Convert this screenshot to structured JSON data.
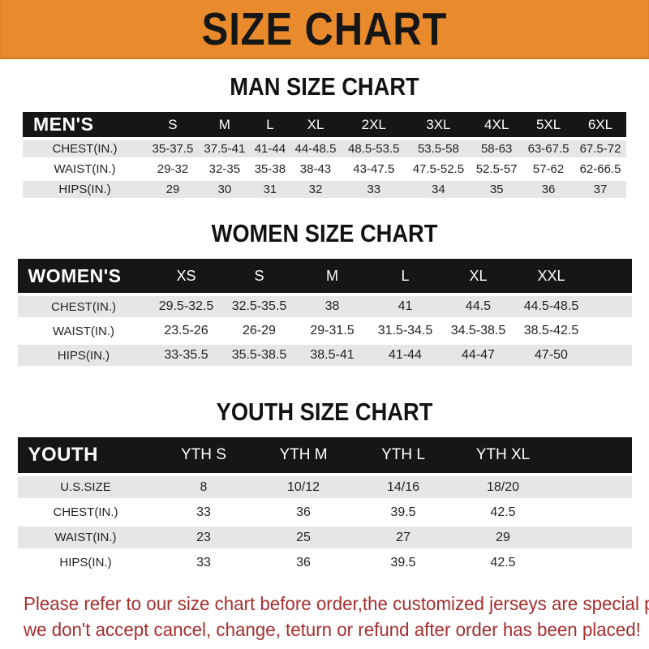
{
  "banner": {
    "title": "SIZE CHART",
    "bg_color": "#e98b2c",
    "text_color": "#161616"
  },
  "sections": [
    {
      "heading": "MAN SIZE CHART",
      "header_label": "MEN'S",
      "columns": [
        "S",
        "M",
        "L",
        "XL",
        "2XL",
        "3XL",
        "4XL",
        "5XL",
        "6XL"
      ],
      "rows": [
        {
          "label": "CHEST(IN.)",
          "values": [
            "35-37.5",
            "37.5-41",
            "41-44",
            "44-48.5",
            "48.5-53.5",
            "53.5-58",
            "58-63",
            "63-67.5",
            "67.5-72"
          ]
        },
        {
          "label": "WAIST(IN.)",
          "values": [
            "29-32",
            "32-35",
            "35-38",
            "38-43",
            "43-47.5",
            "47.5-52.5",
            "52.5-57",
            "57-62",
            "62-66.5"
          ]
        },
        {
          "label": "HIPS(IN.)",
          "values": [
            "29",
            "30",
            "31",
            "32",
            "33",
            "34",
            "35",
            "36",
            "37"
          ]
        }
      ]
    },
    {
      "heading": "WOMEN SIZE CHART",
      "header_label": "WOMEN'S",
      "columns": [
        "XS",
        "S",
        "M",
        "L",
        "XL",
        "XXL"
      ],
      "rows": [
        {
          "label": "CHEST(IN.)",
          "values": [
            "29.5-32.5",
            "32.5-35.5",
            "38",
            "41",
            "44.5",
            "44.5-48.5"
          ]
        },
        {
          "label": "WAIST(IN.)",
          "values": [
            "23.5-26",
            "26-29",
            "29-31.5",
            "31.5-34.5",
            "34.5-38.5",
            "38.5-42.5"
          ]
        },
        {
          "label": "HIPS(IN.)",
          "values": [
            "33-35.5",
            "35.5-38.5",
            "38.5-41",
            "41-44",
            "44-47",
            "47-50"
          ]
        }
      ]
    },
    {
      "heading": "YOUTH SIZE CHART",
      "header_label": "YOUTH",
      "columns": [
        "YTH S",
        "YTH M",
        "YTH L",
        "YTH XL"
      ],
      "rows": [
        {
          "label": "U.S.SIZE",
          "values": [
            "8",
            "10/12",
            "14/16",
            "18/20"
          ]
        },
        {
          "label": "CHEST(IN.)",
          "values": [
            "33",
            "36",
            "39.5",
            "42.5"
          ]
        },
        {
          "label": "WAIST(IN.)",
          "values": [
            "23",
            "25",
            "27",
            "29"
          ]
        },
        {
          "label": "HIPS(IN.)",
          "values": [
            "33",
            "36",
            "39.5",
            "42.5"
          ]
        }
      ]
    }
  ],
  "footer": {
    "line1": "Please refer to our size chart before order,the customized jerseys are special products,",
    "line2": "we don't accept cancel, change, teturn or refund after order has been placed!",
    "text_color": "#a62e2e"
  }
}
